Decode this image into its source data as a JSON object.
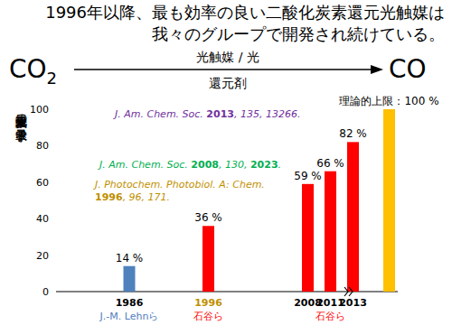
{
  "title": [
    "1996年以降、最も効率の良い二酸化炭素還元光触媒は",
    "我々のグループで開発され続けている。"
  ],
  "reaction": {
    "reactant": "CO2",
    "product": "CO",
    "above_arrow": "光触媒 / 光",
    "below_arrow": "還元剤"
  },
  "chart_data": {
    "type": "bar",
    "y_label": "二酸化炭素還元の量子収率 / %",
    "categories": [
      "1986",
      "1996",
      "2008",
      "2011",
      "2013",
      null
    ],
    "values": [
      14,
      36,
      59,
      66,
      82,
      100
    ],
    "value_labels": [
      "14 %",
      "36 %",
      "59 %",
      "66 %",
      "82 %",
      "理論的上限：100 %"
    ],
    "colors": [
      "#4f81bd",
      "#ff0000",
      "#ff0000",
      "#ff0000",
      "#ff0000",
      "#ffc000"
    ],
    "ylim": [
      0,
      100
    ],
    "yticks": [
      0,
      20,
      40,
      60,
      80,
      100
    ],
    "grid": false,
    "data_labels": true,
    "author_labels": [
      "J.-M. Lehnら",
      "石谷ら",
      null,
      "石谷ら",
      null,
      null
    ],
    "annotations": [
      {
        "text": [
          "J. Am. Chem. Soc. 2013, 135, 13266."
        ],
        "color": "#7030a0"
      },
      {
        "text": [
          "J. Am. Chem. Soc. 2008, 130, 2023."
        ],
        "color": "#00b050"
      },
      {
        "text": [
          "J. Photochem. Photobiol. A: Chem.",
          "1996, 96, 171."
        ],
        "color": "#bf9000"
      }
    ]
  }
}
